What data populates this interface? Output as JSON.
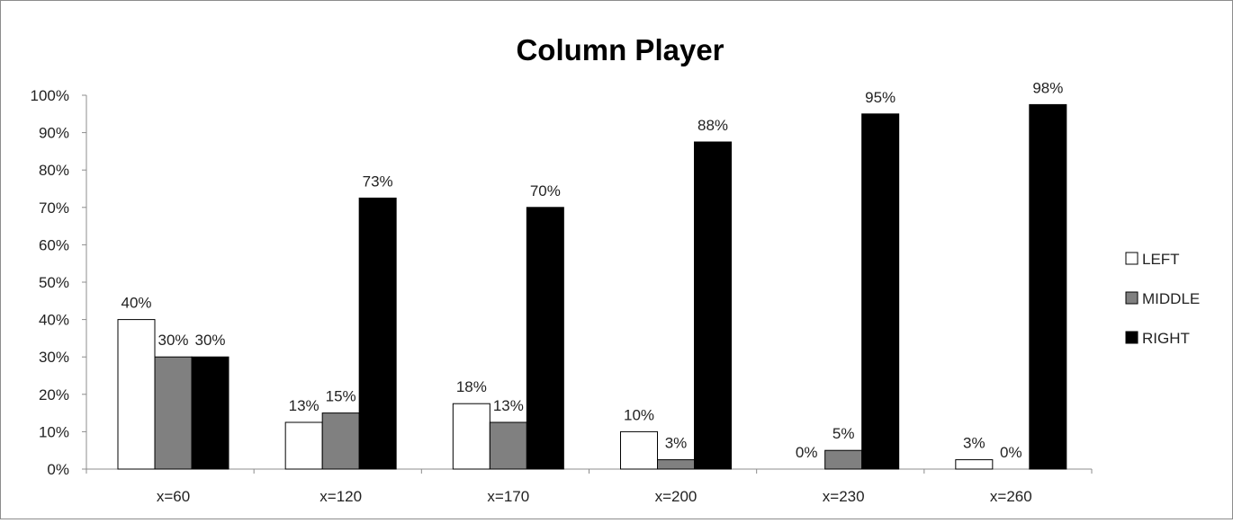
{
  "chart_data": {
    "type": "bar",
    "title": "Column Player",
    "xlabel": "",
    "ylabel": "",
    "categories": [
      "x=60",
      "x=120",
      "x=170",
      "x=200",
      "x=230",
      "x=260"
    ],
    "series": [
      {
        "name": "LEFT",
        "values": [
          40,
          12.5,
          17.5,
          10,
          0,
          2.5
        ],
        "labels": [
          "40%",
          "13%",
          "18%",
          "10%",
          "0%",
          "3%"
        ],
        "color": "#ffffff"
      },
      {
        "name": "MIDDLE",
        "values": [
          30,
          15,
          12.5,
          2.5,
          5,
          0
        ],
        "labels": [
          "30%",
          "15%",
          "13%",
          "3%",
          "5%",
          "0%"
        ],
        "color": "#808080"
      },
      {
        "name": "RIGHT",
        "values": [
          30,
          72.5,
          70,
          87.5,
          95,
          97.5
        ],
        "labels": [
          "30%",
          "73%",
          "70%",
          "88%",
          "95%",
          "98%"
        ],
        "color": "#000000"
      }
    ],
    "ylim": [
      0,
      100
    ],
    "yticks": [
      "0%",
      "10%",
      "20%",
      "30%",
      "40%",
      "50%",
      "60%",
      "70%",
      "80%",
      "90%",
      "100%"
    ],
    "grid": false,
    "legend_position": "right"
  }
}
